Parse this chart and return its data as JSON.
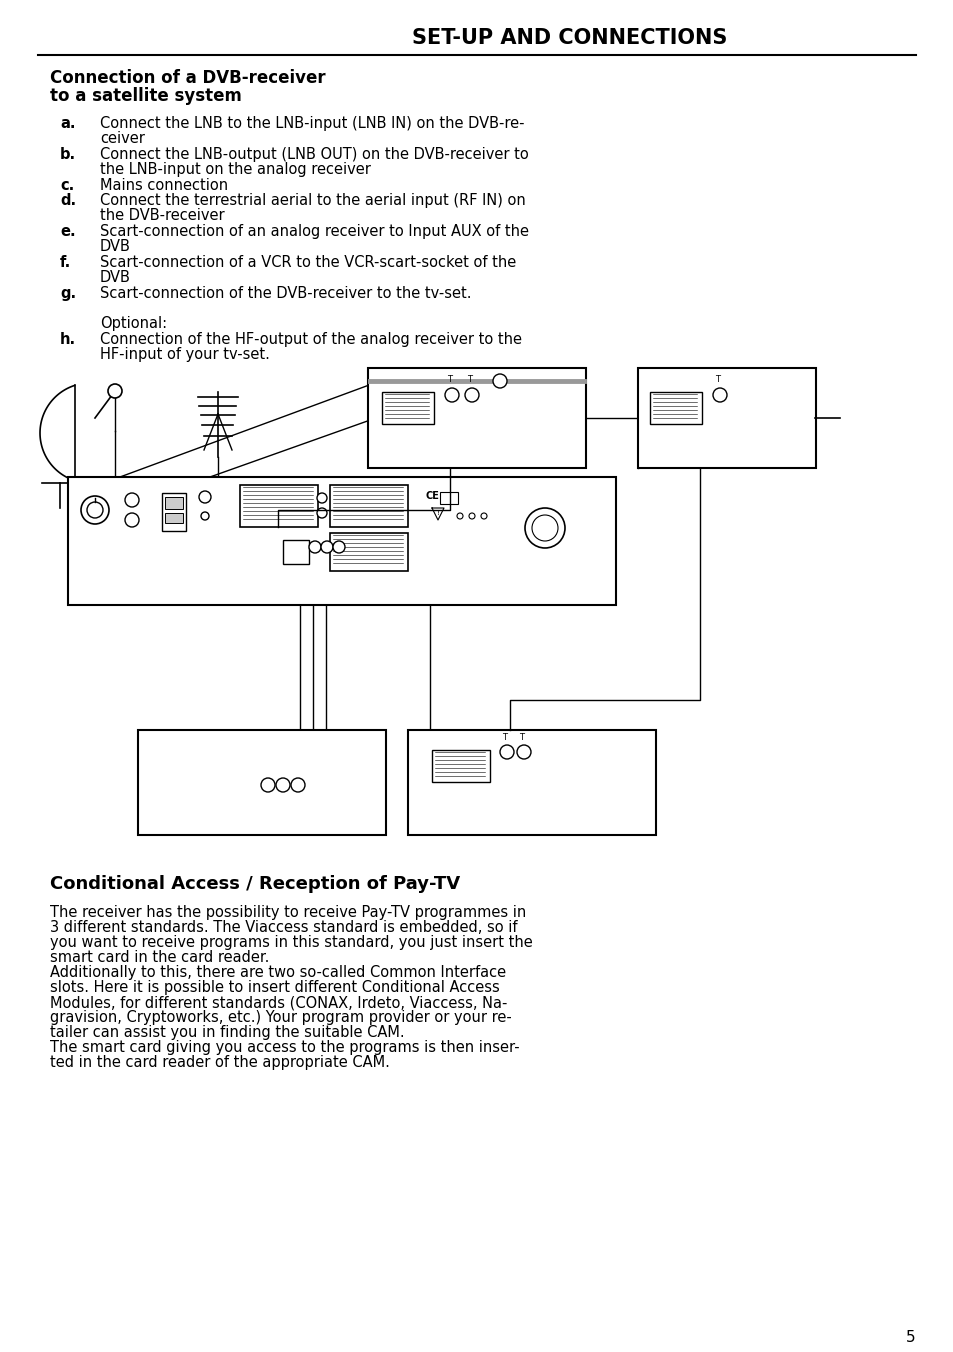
{
  "page_title": "SET-UP AND CONNECTIONS",
  "section1_title_line1": "Connection of a DVB-receiver",
  "section1_title_line2": "to a satellite system",
  "section1_items": [
    {
      "label": "a.",
      "text_lines": [
        "Connect the LNB to the LNB-input (LNB IN) on the DVB-re-",
        "ceiver"
      ]
    },
    {
      "label": "b.",
      "text_lines": [
        "Connect the LNB-output (LNB OUT) on the DVB-receiver to",
        "the LNB-input on the analog receiver"
      ]
    },
    {
      "label": "c.",
      "text_lines": [
        "Mains connection"
      ]
    },
    {
      "label": "d.",
      "text_lines": [
        "Connect the terrestrial aerial to the aerial input (RF IN) on",
        "the DVB-receiver"
      ]
    },
    {
      "label": "e.",
      "text_lines": [
        "Scart-connection of an analog receiver to Input AUX of the",
        "DVB"
      ]
    },
    {
      "label": "f.",
      "text_lines": [
        "Scart-connection of a VCR to the VCR-scart-socket of the",
        "DVB"
      ]
    },
    {
      "label": "g.",
      "text_lines": [
        "Scart-connection of the DVB-receiver to the tv-set."
      ]
    }
  ],
  "optional_label": "Optional:",
  "section1_h_label": "h.",
  "section1_h_lines": [
    "Connection of the HF-output of the analog receiver to the",
    "HF-input of your tv-set."
  ],
  "section2_title": "Conditional Access / Reception of Pay-TV",
  "section2_lines": [
    "The receiver has the possibility to receive Pay-TV programmes in",
    "3 different standards. The Viaccess standard is embedded, so if",
    "you want to receive programs in this standard, you just insert the",
    "smart card in the card reader.",
    "Additionally to this, there are two so-called Common Interface",
    "slots. Here it is possible to insert different Conditional Access",
    "Modules, for different standards (CONAX, Irdeto, Viaccess, Na-",
    "gravision, Cryptoworks, etc.) Your program provider or your re-",
    "tailer can assist you in finding the suitable CAM.",
    "The smart card giving you access to the programs is then inser-",
    "ted in the card reader of the appropriate CAM."
  ],
  "page_number": "5",
  "bg_color": "#ffffff",
  "text_color": "#000000"
}
